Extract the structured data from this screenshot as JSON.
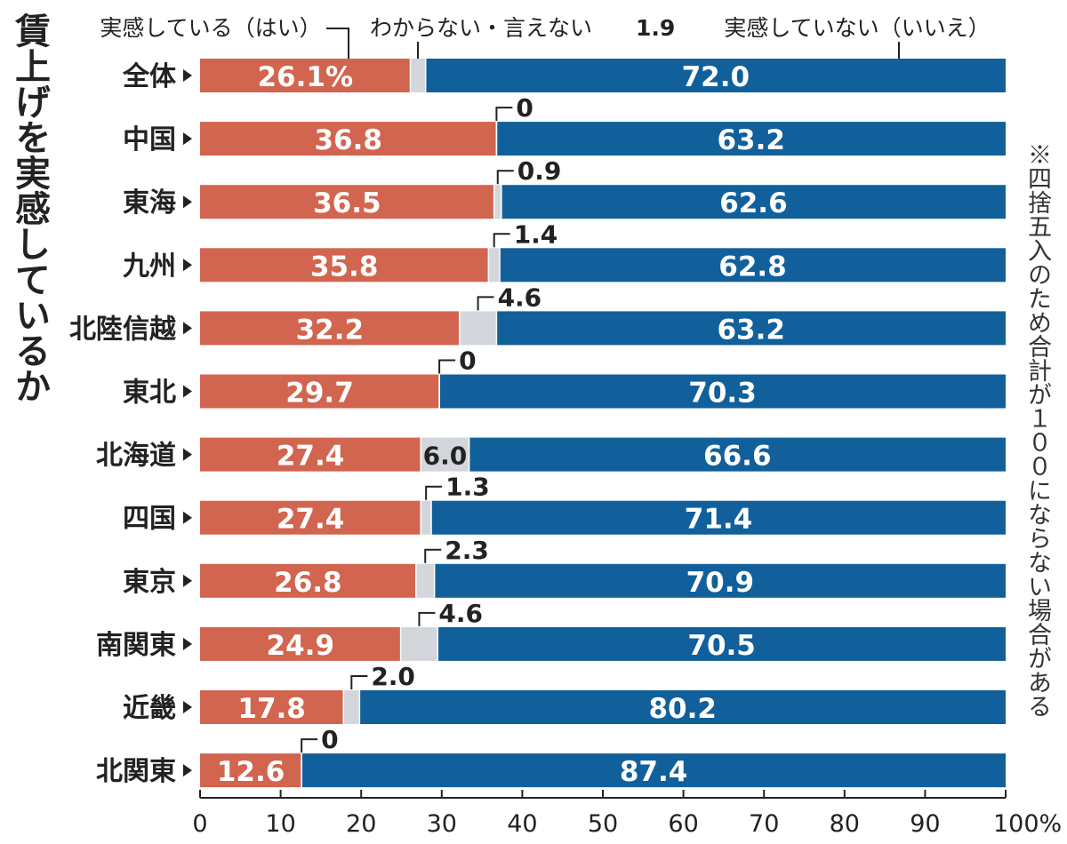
{
  "title": "賃上げを実感しているか",
  "note": "※四捨五入のため合計が１００にならない場合がある",
  "chart_data": {
    "type": "bar",
    "orientation": "horizontal",
    "stacked": true,
    "categories": [
      "全体",
      "中国",
      "東海",
      "九州",
      "北陸信越",
      "東北",
      "北海道",
      "四国",
      "東京",
      "南関東",
      "近畿",
      "北関東"
    ],
    "series": [
      {
        "name": "実感している（はい）",
        "color": "#d2654f",
        "values": [
          26.1,
          36.8,
          36.5,
          35.8,
          32.2,
          29.7,
          27.4,
          27.4,
          26.8,
          24.9,
          17.8,
          12.6
        ]
      },
      {
        "name": "わからない・言えない",
        "color": "#d3d7db",
        "values": [
          1.9,
          0,
          0.9,
          1.4,
          4.6,
          0,
          6.0,
          1.3,
          2.3,
          4.6,
          2.0,
          0
        ]
      },
      {
        "name": "実感していない（いいえ）",
        "color": "#11609b",
        "values": [
          72.0,
          63.2,
          62.6,
          62.8,
          63.2,
          70.3,
          66.6,
          71.4,
          70.9,
          70.5,
          80.2,
          87.4
        ]
      }
    ],
    "value_labels": {
      "yes": [
        "26.1%",
        "36.8",
        "36.5",
        "35.8",
        "32.2",
        "29.7",
        "27.4",
        "27.4",
        "26.8",
        "24.9",
        "17.8",
        "12.6"
      ],
      "unsure": [
        "",
        "0",
        "0.9",
        "1.4",
        "4.6",
        "0",
        "6.0",
        "1.3",
        "2.3",
        "4.6",
        "2.0",
        "0"
      ],
      "no": [
        "72.0",
        "63.2",
        "62.6",
        "62.8",
        "63.2",
        "70.3",
        "66.6",
        "71.4",
        "70.9",
        "70.5",
        "80.2",
        "87.4"
      ]
    },
    "unsure_label_position": [
      "",
      "above",
      "above",
      "above",
      "above",
      "above",
      "inside",
      "above",
      "above",
      "above",
      "above",
      "above"
    ],
    "legend_labels": [
      "実感している（はい）",
      "わからない・言えない",
      "1.9",
      "実感していない（いいえ）"
    ],
    "x_ticks": [
      "0",
      "10",
      "20",
      "30",
      "40",
      "50",
      "60",
      "70",
      "80",
      "90",
      "100%"
    ],
    "xlim": [
      0,
      100
    ],
    "grid": false
  }
}
